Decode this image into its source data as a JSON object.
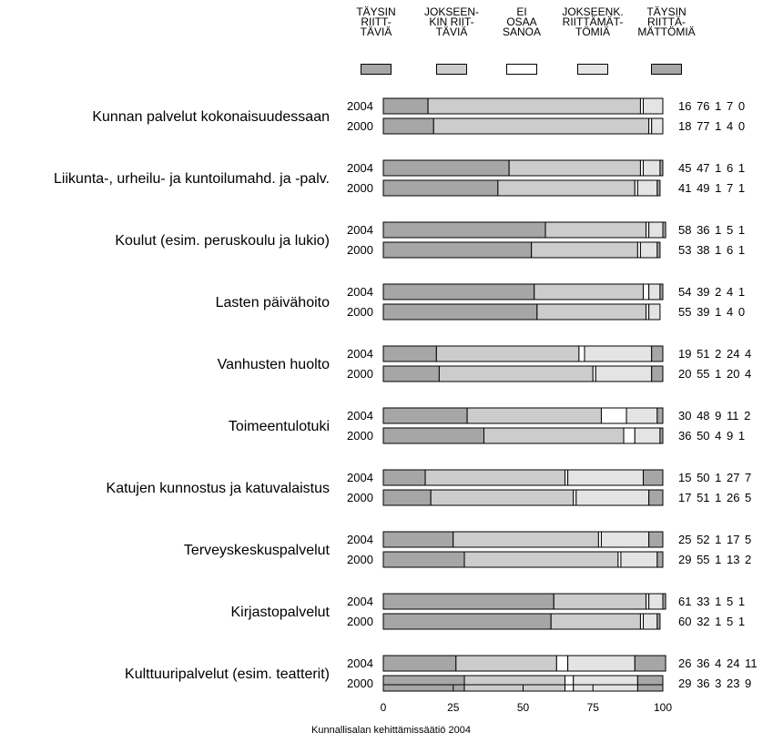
{
  "legend": [
    {
      "lines": [
        "TÄYSIN",
        "RIITT-",
        "TÄVIÄ"
      ],
      "color": "#a6a6a6"
    },
    {
      "lines": [
        "JOKSEEN-",
        "KIN RIIT-",
        "TÄVIÄ"
      ],
      "color": "#cccccc"
    },
    {
      "lines": [
        "EI",
        "OSAA",
        "SANOA"
      ],
      "color": "#ffffff"
    },
    {
      "lines": [
        "JOKSEENK.",
        "RIITTÄMÄT-",
        "TÖMIÄ"
      ],
      "color": "#e4e4e4"
    },
    {
      "lines": [
        "TÄYSIN",
        "RIITTÄ-",
        "MÄTTÖMIÄ"
      ],
      "color": "#a6a6a6"
    }
  ],
  "credit": "Kunnallisalan kehittämissäätiö 2004",
  "chart_data": {
    "type": "bar",
    "orientation": "horizontal",
    "stacked": true,
    "xlim": [
      0,
      100
    ],
    "xticks": [
      "0",
      "25",
      "50",
      "75",
      "100"
    ],
    "series_names": [
      "TÄYSIN RIITTÄVIÄ",
      "JOKSEENKIN RIITTÄVIÄ",
      "EI OSAA SANOA",
      "JOKSEENK. RIITTÄMÄTTÖMIÄ",
      "TÄYSIN RIITTÄMÄTTÖMIÄ"
    ],
    "categories": [
      {
        "label": "Kunnan palvelut kokonaisuudessaan",
        "rows": [
          {
            "year": "2004",
            "values": [
              16,
              76,
              1,
              7,
              0
            ]
          },
          {
            "year": "2000",
            "values": [
              18,
              77,
              1,
              4,
              0
            ]
          }
        ]
      },
      {
        "label": "Liikunta-, urheilu- ja kuntoilumahd. ja -palv.",
        "rows": [
          {
            "year": "2004",
            "values": [
              45,
              47,
              1,
              6,
              1
            ]
          },
          {
            "year": "2000",
            "values": [
              41,
              49,
              1,
              7,
              1
            ]
          }
        ]
      },
      {
        "label": "Koulut (esim. peruskoulu ja lukio)",
        "rows": [
          {
            "year": "2004",
            "values": [
              58,
              36,
              1,
              5,
              1
            ]
          },
          {
            "year": "2000",
            "values": [
              53,
              38,
              1,
              6,
              1
            ]
          }
        ]
      },
      {
        "label": "Lasten päivähoito",
        "rows": [
          {
            "year": "2004",
            "values": [
              54,
              39,
              2,
              4,
              1
            ]
          },
          {
            "year": "2000",
            "values": [
              55,
              39,
              1,
              4,
              0
            ]
          }
        ]
      },
      {
        "label": "Vanhusten huolto",
        "rows": [
          {
            "year": "2004",
            "values": [
              19,
              51,
              2,
              24,
              4
            ]
          },
          {
            "year": "2000",
            "values": [
              20,
              55,
              1,
              20,
              4
            ]
          }
        ]
      },
      {
        "label": "Toimeentulotuki",
        "rows": [
          {
            "year": "2004",
            "values": [
              30,
              48,
              9,
              11,
              2
            ]
          },
          {
            "year": "2000",
            "values": [
              36,
              50,
              4,
              9,
              1
            ]
          }
        ]
      },
      {
        "label": "Katujen kunnostus ja katuvalaistus",
        "rows": [
          {
            "year": "2004",
            "values": [
              15,
              50,
              1,
              27,
              7
            ]
          },
          {
            "year": "2000",
            "values": [
              17,
              51,
              1,
              26,
              5
            ]
          }
        ]
      },
      {
        "label": "Terveyskeskuspalvelut",
        "rows": [
          {
            "year": "2004",
            "values": [
              25,
              52,
              1,
              17,
              5
            ]
          },
          {
            "year": "2000",
            "values": [
              29,
              55,
              1,
              13,
              2
            ]
          }
        ]
      },
      {
        "label": "Kirjastopalvelut",
        "rows": [
          {
            "year": "2004",
            "values": [
              61,
              33,
              1,
              5,
              1
            ]
          },
          {
            "year": "2000",
            "values": [
              60,
              32,
              1,
              5,
              1
            ]
          }
        ]
      },
      {
        "label": "Kulttuuripalvelut (esim. teatterit)",
        "rows": [
          {
            "year": "2004",
            "values": [
              26,
              36,
              4,
              24,
              11
            ]
          },
          {
            "year": "2000",
            "values": [
              29,
              36,
              3,
              23,
              9
            ]
          }
        ]
      }
    ]
  }
}
